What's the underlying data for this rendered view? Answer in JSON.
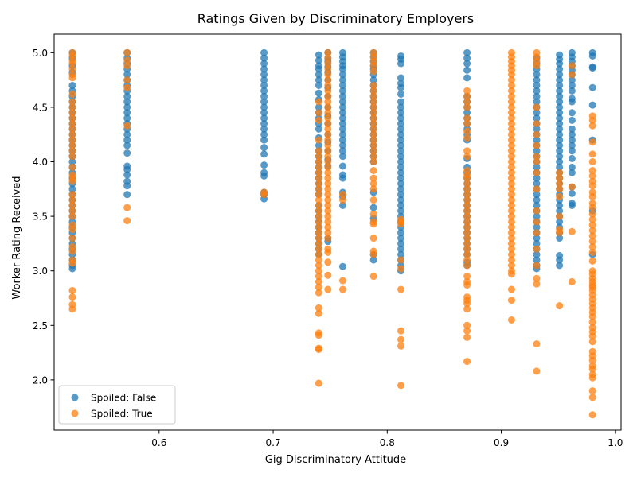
{
  "chart_data": {
    "type": "scatter",
    "title": "Ratings Given by Discriminatory Employers",
    "xlabel": "Gig Discriminatory Attitude",
    "ylabel": "Worker Rating Received",
    "xlim": [
      0.508,
      1.005
    ],
    "ylim": [
      1.54,
      5.17
    ],
    "x_ticks": [
      0.6,
      0.7,
      0.8,
      0.9,
      1.0
    ],
    "x_tick_labels": [
      "0.6",
      "0.7",
      "0.8",
      "0.9",
      "1.0"
    ],
    "y_ticks": [
      2.0,
      2.5,
      3.0,
      3.5,
      4.0,
      4.5,
      5.0
    ],
    "y_tick_labels": [
      "2.0",
      "2.5",
      "3.0",
      "3.5",
      "4.0",
      "4.5",
      "5.0"
    ],
    "grid": false,
    "legend_position": "lower-left",
    "series": [
      {
        "name": "Spoiled: False",
        "color": "#1f77b4",
        "x_columns": [
          0.524,
          0.572,
          0.692,
          0.74,
          0.748,
          0.761,
          0.788,
          0.812,
          0.87,
          0.931,
          0.951,
          0.962,
          0.98
        ],
        "columns": [
          {
            "x": 0.524,
            "y": [
              5.0,
              4.95,
              4.88,
              4.82,
              4.7,
              4.65,
              4.6,
              4.55,
              4.5,
              4.45,
              4.4,
              4.35,
              4.3,
              4.25,
              4.2,
              4.15,
              4.1,
              4.05,
              4.0,
              3.95,
              3.9,
              3.85,
              3.8,
              3.75,
              3.7,
              3.65,
              3.6,
              3.55,
              3.5,
              3.45,
              3.4,
              3.35,
              3.3,
              3.25,
              3.2,
              3.15,
              3.1,
              3.05,
              3.02
            ]
          },
          {
            "x": 0.572,
            "y": [
              5.0,
              4.95,
              4.9,
              4.85,
              4.8,
              4.75,
              4.7,
              4.65,
              4.6,
              4.55,
              4.5,
              4.45,
              4.4,
              4.35,
              4.3,
              4.25,
              4.2,
              4.15,
              4.08,
              3.96,
              3.93,
              3.88,
              3.82,
              3.78,
              3.7
            ]
          },
          {
            "x": 0.692,
            "y": [
              5.0,
              4.95,
              4.9,
              4.85,
              4.8,
              4.75,
              4.7,
              4.65,
              4.6,
              4.55,
              4.5,
              4.45,
              4.4,
              4.35,
              4.3,
              4.25,
              4.2,
              4.13,
              4.07,
              3.97,
              3.9,
              3.87,
              3.72,
              3.7,
              3.66
            ]
          },
          {
            "x": 0.74,
            "y": [
              4.98,
              4.93,
              4.88,
              4.85,
              4.8,
              4.75,
              4.7,
              4.63,
              4.57,
              4.5,
              4.45,
              4.4,
              4.35,
              4.3,
              4.22,
              4.15,
              4.1,
              4.05,
              4.0,
              3.95,
              3.9,
              3.85,
              3.8,
              3.75,
              3.7,
              3.6,
              3.55,
              3.5,
              3.45,
              3.4,
              3.35,
              3.3,
              3.25,
              3.2,
              3.15
            ]
          },
          {
            "x": 0.748,
            "y": [
              5.0,
              4.95,
              4.92,
              4.87,
              4.82,
              4.75,
              4.68,
              4.6,
              4.5,
              4.42,
              4.35,
              4.25,
              4.18,
              4.1,
              4.02,
              3.96,
              3.3,
              3.27
            ]
          },
          {
            "x": 0.761,
            "y": [
              5.0,
              4.96,
              4.92,
              4.88,
              4.85,
              4.8,
              4.75,
              4.7,
              4.65,
              4.6,
              4.55,
              4.5,
              4.45,
              4.4,
              4.35,
              4.3,
              4.25,
              4.2,
              4.15,
              4.1,
              4.05,
              3.96,
              3.88,
              3.85,
              3.72,
              3.68,
              3.6,
              3.04
            ]
          },
          {
            "x": 0.788,
            "y": [
              5.0,
              4.96,
              4.92,
              4.88,
              4.85,
              4.8,
              4.75,
              4.7,
              4.65,
              4.6,
              4.55,
              4.5,
              4.45,
              4.4,
              4.35,
              4.3,
              4.25,
              4.2,
              4.15,
              4.1,
              4.05,
              4.0,
              3.72,
              3.58,
              3.48,
              3.15,
              3.1
            ]
          },
          {
            "x": 0.812,
            "y": [
              4.97,
              4.94,
              4.9,
              4.77,
              4.72,
              4.68,
              4.62,
              4.55,
              4.5,
              4.45,
              4.4,
              4.35,
              4.3,
              4.25,
              4.2,
              4.15,
              4.1,
              4.05,
              4.0,
              3.95,
              3.9,
              3.85,
              3.8,
              3.75,
              3.7,
              3.65,
              3.6,
              3.55,
              3.5,
              3.45,
              3.4,
              3.35,
              3.3,
              3.25,
              3.2,
              3.15,
              3.1,
              3.05,
              3.0
            ]
          },
          {
            "x": 0.87,
            "y": [
              5.0,
              4.95,
              4.9,
              4.84,
              4.77,
              4.6,
              4.55,
              4.5,
              4.45,
              4.4,
              4.35,
              4.3,
              4.25,
              4.2,
              4.03,
              3.95,
              3.9,
              3.85,
              3.8,
              3.75,
              3.7,
              3.65,
              3.6,
              3.55,
              3.5,
              3.45,
              3.4,
              3.35,
              3.3,
              3.25,
              3.2,
              3.15,
              3.08,
              3.05
            ]
          },
          {
            "x": 0.931,
            "y": [
              4.95,
              4.9,
              4.85,
              4.8,
              4.75,
              4.7,
              4.65,
              4.6,
              4.55,
              4.5,
              4.45,
              4.4,
              4.35,
              4.3,
              4.25,
              4.2,
              4.15,
              4.1,
              4.05,
              4.0,
              3.95,
              3.9,
              3.85,
              3.8,
              3.75,
              3.7,
              3.65,
              3.6,
              3.55,
              3.5,
              3.45,
              3.4,
              3.35,
              3.3,
              3.25,
              3.2,
              3.15,
              3.1,
              3.05,
              3.02
            ]
          },
          {
            "x": 0.951,
            "y": [
              4.98,
              4.94,
              4.9,
              4.85,
              4.8,
              4.75,
              4.7,
              4.65,
              4.6,
              4.55,
              4.5,
              4.45,
              4.4,
              4.35,
              4.3,
              4.25,
              4.2,
              4.15,
              4.1,
              4.05,
              4.0,
              3.95,
              3.9,
              3.85,
              3.8,
              3.75,
              3.7,
              3.65,
              3.6,
              3.55,
              3.5,
              3.45,
              3.4,
              3.35,
              3.3,
              3.14,
              3.1,
              3.05
            ]
          },
          {
            "x": 0.962,
            "y": [
              5.0,
              4.96,
              4.92,
              4.88,
              4.84,
              4.8,
              4.75,
              4.7,
              4.65,
              4.58,
              4.55,
              4.45,
              4.38,
              4.3,
              4.25,
              4.2,
              4.15,
              4.1,
              4.03,
              3.95,
              3.9,
              3.77,
              3.71,
              3.62,
              3.6
            ]
          },
          {
            "x": 0.98,
            "y": [
              5.0,
              4.97,
              4.87,
              4.86,
              4.68,
              4.52,
              4.2,
              3.55,
              3.15
            ]
          }
        ]
      },
      {
        "name": "Spoiled: True",
        "color": "#ff7f0e",
        "x_columns": [
          0.524,
          0.572,
          0.692,
          0.74,
          0.748,
          0.761,
          0.788,
          0.812,
          0.87,
          0.909,
          0.931,
          0.951,
          0.962,
          0.98
        ],
        "columns": [
          {
            "x": 0.524,
            "y": [
              5.0,
              4.97,
              4.93,
              4.9,
              4.85,
              4.8,
              4.77,
              4.62,
              4.55,
              4.5,
              4.45,
              4.4,
              4.35,
              4.3,
              4.25,
              4.2,
              4.15,
              4.1,
              4.05,
              3.95,
              3.88,
              3.85,
              3.82,
              3.7,
              3.65,
              3.6,
              3.55,
              3.5,
              3.42,
              3.38,
              3.3,
              3.22,
              3.18,
              3.1,
              3.07,
              2.82,
              2.76,
              2.69,
              2.65
            ]
          },
          {
            "x": 0.572,
            "y": [
              5.0,
              4.93,
              4.88,
              4.75,
              4.68,
              4.33,
              3.58,
              3.46
            ]
          },
          {
            "x": 0.692,
            "y": [
              3.72,
              3.7
            ]
          },
          {
            "x": 0.74,
            "y": [
              4.55,
              4.45,
              4.38,
              4.2,
              4.1,
              4.05,
              4.0,
              3.95,
              3.9,
              3.85,
              3.8,
              3.75,
              3.7,
              3.65,
              3.6,
              3.55,
              3.5,
              3.45,
              3.4,
              3.35,
              3.3,
              3.25,
              3.2,
              3.15,
              3.1,
              3.05,
              3.0,
              2.95,
              2.9,
              2.85,
              2.8,
              2.66,
              2.61,
              2.43,
              2.41,
              2.29,
              2.28,
              1.97
            ]
          },
          {
            "x": 0.748,
            "y": [
              5.0,
              4.95,
              4.9,
              4.85,
              4.8,
              4.75,
              4.7,
              4.65,
              4.6,
              4.55,
              4.5,
              4.45,
              4.4,
              4.35,
              4.3,
              4.25,
              4.2,
              4.15,
              4.1,
              4.05,
              4.0,
              3.95,
              3.9,
              3.85,
              3.8,
              3.75,
              3.7,
              3.65,
              3.6,
              3.55,
              3.5,
              3.45,
              3.4,
              3.35,
              3.3,
              3.2,
              3.17,
              3.08,
              2.96,
              2.83
            ]
          },
          {
            "x": 0.761,
            "y": [
              3.7,
              3.65,
              2.91,
              2.83
            ]
          },
          {
            "x": 0.788,
            "y": [
              5.0,
              4.96,
              4.92,
              4.88,
              4.83,
              4.7,
              4.65,
              4.6,
              4.55,
              4.5,
              4.45,
              4.4,
              4.35,
              4.3,
              4.25,
              4.2,
              4.15,
              4.1,
              4.05,
              4.0,
              3.92,
              3.85,
              3.8,
              3.75,
              3.65,
              3.52,
              3.45,
              3.43,
              3.3,
              3.18,
              3.15,
              2.95
            ]
          },
          {
            "x": 0.812,
            "y": [
              3.47,
              3.45,
              3.43,
              3.1,
              3.02,
              2.83,
              2.45,
              2.37,
              2.31,
              1.95
            ]
          },
          {
            "x": 0.87,
            "y": [
              4.65,
              4.6,
              4.55,
              4.5,
              4.4,
              4.35,
              4.28,
              4.22,
              4.1,
              4.05,
              3.92,
              3.88,
              3.85,
              3.8,
              3.75,
              3.7,
              3.65,
              3.6,
              3.55,
              3.5,
              3.45,
              3.4,
              3.35,
              3.3,
              3.25,
              3.2,
              3.15,
              3.1,
              3.05,
              2.95,
              2.9,
              2.87,
              2.76,
              2.73,
              2.7,
              2.65,
              2.5,
              2.45,
              2.39,
              2.17
            ]
          },
          {
            "x": 0.909,
            "y": [
              5.0,
              4.96,
              4.92,
              4.88,
              4.84,
              4.8,
              4.75,
              4.7,
              4.65,
              4.6,
              4.55,
              4.5,
              4.45,
              4.4,
              4.35,
              4.3,
              4.25,
              4.2,
              4.15,
              4.1,
              4.05,
              4.0,
              3.95,
              3.9,
              3.85,
              3.8,
              3.75,
              3.7,
              3.65,
              3.6,
              3.55,
              3.5,
              3.45,
              3.4,
              3.35,
              3.3,
              3.25,
              3.2,
              3.15,
              3.1,
              3.05,
              3.0,
              2.97,
              2.83,
              2.73,
              2.55
            ]
          },
          {
            "x": 0.931,
            "y": [
              5.0,
              4.96,
              4.92,
              4.88,
              4.5,
              4.35,
              4.25,
              4.15,
              4.05,
              4.0,
              3.9,
              3.75,
              3.55,
              3.45,
              3.35,
              3.2,
              3.05,
              2.93,
              2.88,
              2.33,
              2.08
            ]
          },
          {
            "x": 0.951,
            "y": [
              3.9,
              3.85,
              3.8,
              3.75,
              3.68,
              3.5,
              3.38,
              3.35,
              2.68
            ]
          },
          {
            "x": 0.962,
            "y": [
              4.88,
              4.8,
              3.77,
              3.36,
              2.9
            ]
          },
          {
            "x": 0.98,
            "y": [
              4.42,
              4.38,
              4.33,
              4.18,
              4.07,
              4.0,
              3.92,
              3.87,
              3.82,
              3.78,
              3.72,
              3.68,
              3.62,
              3.58,
              3.52,
              3.47,
              3.42,
              3.37,
              3.32,
              3.27,
              3.22,
              3.17,
              3.09,
              3.0,
              2.97,
              2.93,
              2.9,
              2.87,
              2.85,
              2.82,
              2.78,
              2.74,
              2.7,
              2.66,
              2.62,
              2.58,
              2.53,
              2.48,
              2.44,
              2.4,
              2.35,
              2.26,
              2.22,
              2.18,
              2.13,
              2.1,
              2.05,
              2.02,
              1.9,
              1.84,
              1.68
            ]
          }
        ]
      }
    ]
  }
}
